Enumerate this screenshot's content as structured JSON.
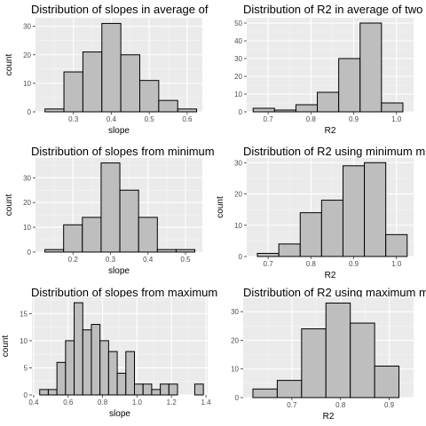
{
  "chart_data": [
    {
      "type": "bar",
      "title": "Distribution of slopes in average of",
      "xlabel": "slope",
      "ylabel": "count",
      "xlim": [
        0.2,
        0.64
      ],
      "ylim": [
        0,
        33
      ],
      "xticks": [
        0.3,
        0.4,
        0.5,
        0.6
      ],
      "xtick_labels": [
        "0.3",
        "0.4",
        "0.5",
        "0.6"
      ],
      "yticks": [
        0,
        10,
        20,
        30
      ],
      "bins": [
        {
          "x0": 0.225,
          "x1": 0.275,
          "value": 1
        },
        {
          "x0": 0.275,
          "x1": 0.325,
          "value": 14
        },
        {
          "x0": 0.325,
          "x1": 0.375,
          "value": 21
        },
        {
          "x0": 0.375,
          "x1": 0.425,
          "value": 31
        },
        {
          "x0": 0.425,
          "x1": 0.475,
          "value": 20
        },
        {
          "x0": 0.475,
          "x1": 0.525,
          "value": 11
        },
        {
          "x0": 0.525,
          "x1": 0.575,
          "value": 4
        },
        {
          "x0": 0.575,
          "x1": 0.625,
          "value": 1
        }
      ]
    },
    {
      "type": "bar",
      "title": "Distribution of R2 in average of two",
      "xlabel": "R2",
      "ylabel": "",
      "xlim": [
        0.65,
        1.04
      ],
      "ylim": [
        0,
        53
      ],
      "xticks": [
        0.7,
        0.8,
        0.9,
        1.0
      ],
      "xtick_labels": [
        "0.7",
        "0.8",
        "0.9",
        "1.0"
      ],
      "yticks": [
        0,
        10,
        20,
        30,
        40,
        50
      ],
      "bins": [
        {
          "x0": 0.665,
          "x1": 0.715,
          "value": 2
        },
        {
          "x0": 0.715,
          "x1": 0.765,
          "value": 1
        },
        {
          "x0": 0.765,
          "x1": 0.815,
          "value": 4
        },
        {
          "x0": 0.815,
          "x1": 0.865,
          "value": 11
        },
        {
          "x0": 0.865,
          "x1": 0.915,
          "value": 30
        },
        {
          "x0": 0.915,
          "x1": 0.965,
          "value": 50
        },
        {
          "x0": 0.965,
          "x1": 1.015,
          "value": 5
        }
      ]
    },
    {
      "type": "bar",
      "title": "Distribution of slopes from minimum",
      "xlabel": "slope",
      "ylabel": "count",
      "xlim": [
        0.1,
        0.545
      ],
      "ylim": [
        0,
        38
      ],
      "xticks": [
        0.2,
        0.3,
        0.4,
        0.5
      ],
      "xtick_labels": [
        "0.2",
        "0.3",
        "0.4",
        "0.5"
      ],
      "yticks": [
        0,
        10,
        20,
        30
      ],
      "bins": [
        {
          "x0": 0.125,
          "x1": 0.175,
          "value": 1
        },
        {
          "x0": 0.175,
          "x1": 0.225,
          "value": 11
        },
        {
          "x0": 0.225,
          "x1": 0.275,
          "value": 14
        },
        {
          "x0": 0.275,
          "x1": 0.325,
          "value": 36
        },
        {
          "x0": 0.325,
          "x1": 0.375,
          "value": 25
        },
        {
          "x0": 0.375,
          "x1": 0.425,
          "value": 14
        },
        {
          "x0": 0.425,
          "x1": 0.475,
          "value": 1
        },
        {
          "x0": 0.475,
          "x1": 0.525,
          "value": 1
        }
      ]
    },
    {
      "type": "bar",
      "title": "Distribution of R2 using minimum m",
      "xlabel": "R2",
      "ylabel": "count",
      "xlim": [
        0.65,
        1.04
      ],
      "ylim": [
        0,
        31.5
      ],
      "xticks": [
        0.7,
        0.8,
        0.9,
        1.0
      ],
      "xtick_labels": [
        "0.7",
        "0.8",
        "0.9",
        "1.0"
      ],
      "yticks": [
        0,
        10,
        20,
        30
      ],
      "bins": [
        {
          "x0": 0.675,
          "x1": 0.725,
          "value": 1
        },
        {
          "x0": 0.725,
          "x1": 0.775,
          "value": 4
        },
        {
          "x0": 0.775,
          "x1": 0.825,
          "value": 14
        },
        {
          "x0": 0.825,
          "x1": 0.875,
          "value": 18
        },
        {
          "x0": 0.875,
          "x1": 0.925,
          "value": 29
        },
        {
          "x0": 0.925,
          "x1": 0.975,
          "value": 30
        },
        {
          "x0": 0.975,
          "x1": 1.025,
          "value": 7
        }
      ]
    },
    {
      "type": "bar",
      "title": "Distribution of slopes from maximum",
      "xlabel": "slope",
      "ylabel": "count",
      "xlim": [
        0.39,
        1.41
      ],
      "ylim": [
        0,
        18
      ],
      "xticks": [
        0.4,
        0.6,
        0.8,
        1.0,
        1.2,
        1.4
      ],
      "xtick_labels": [
        "0.4",
        "0.6",
        "0.8",
        "1.0",
        "1.2",
        "1.4"
      ],
      "yticks": [
        0,
        5,
        10,
        15
      ],
      "bins": [
        {
          "x0": 0.435,
          "x1": 0.485,
          "value": 1
        },
        {
          "x0": 0.485,
          "x1": 0.535,
          "value": 1
        },
        {
          "x0": 0.535,
          "x1": 0.585,
          "value": 6
        },
        {
          "x0": 0.585,
          "x1": 0.635,
          "value": 10
        },
        {
          "x0": 0.635,
          "x1": 0.685,
          "value": 17
        },
        {
          "x0": 0.685,
          "x1": 0.735,
          "value": 12
        },
        {
          "x0": 0.735,
          "x1": 0.785,
          "value": 13
        },
        {
          "x0": 0.785,
          "x1": 0.835,
          "value": 10
        },
        {
          "x0": 0.835,
          "x1": 0.885,
          "value": 8
        },
        {
          "x0": 0.885,
          "x1": 0.935,
          "value": 4
        },
        {
          "x0": 0.935,
          "x1": 0.985,
          "value": 8
        },
        {
          "x0": 0.985,
          "x1": 1.035,
          "value": 2
        },
        {
          "x0": 1.035,
          "x1": 1.085,
          "value": 2
        },
        {
          "x0": 1.085,
          "x1": 1.135,
          "value": 1
        },
        {
          "x0": 1.135,
          "x1": 1.185,
          "value": 2
        },
        {
          "x0": 1.185,
          "x1": 1.235,
          "value": 2
        },
        {
          "x0": 1.235,
          "x1": 1.285,
          "value": 0
        },
        {
          "x0": 1.285,
          "x1": 1.335,
          "value": 0
        },
        {
          "x0": 1.335,
          "x1": 1.385,
          "value": 2
        }
      ]
    },
    {
      "type": "bar",
      "title": "Distribution of R2 using maximum m",
      "xlabel": "R2",
      "ylabel": "",
      "xlim": [
        0.6,
        0.95
      ],
      "ylim": [
        0,
        35
      ],
      "xticks": [
        0.7,
        0.8,
        0.9
      ],
      "xtick_labels": [
        "0.7",
        "0.8",
        "0.9"
      ],
      "yticks": [
        0,
        10,
        20,
        30
      ],
      "bins": [
        {
          "x0": 0.62,
          "x1": 0.67,
          "value": 3
        },
        {
          "x0": 0.67,
          "x1": 0.72,
          "value": 6
        },
        {
          "x0": 0.72,
          "x1": 0.77,
          "value": 24
        },
        {
          "x0": 0.77,
          "x1": 0.82,
          "value": 33
        },
        {
          "x0": 0.82,
          "x1": 0.87,
          "value": 26
        },
        {
          "x0": 0.87,
          "x1": 0.92,
          "value": 11
        }
      ]
    }
  ],
  "colors": {
    "panel_bg": "#ebebeb",
    "grid_major": "#ffffff",
    "grid_minor": "#f5f5f5",
    "bar_fill": "#bebebe",
    "bar_stroke": "#000000",
    "tick_text": "#4d4d4d"
  }
}
